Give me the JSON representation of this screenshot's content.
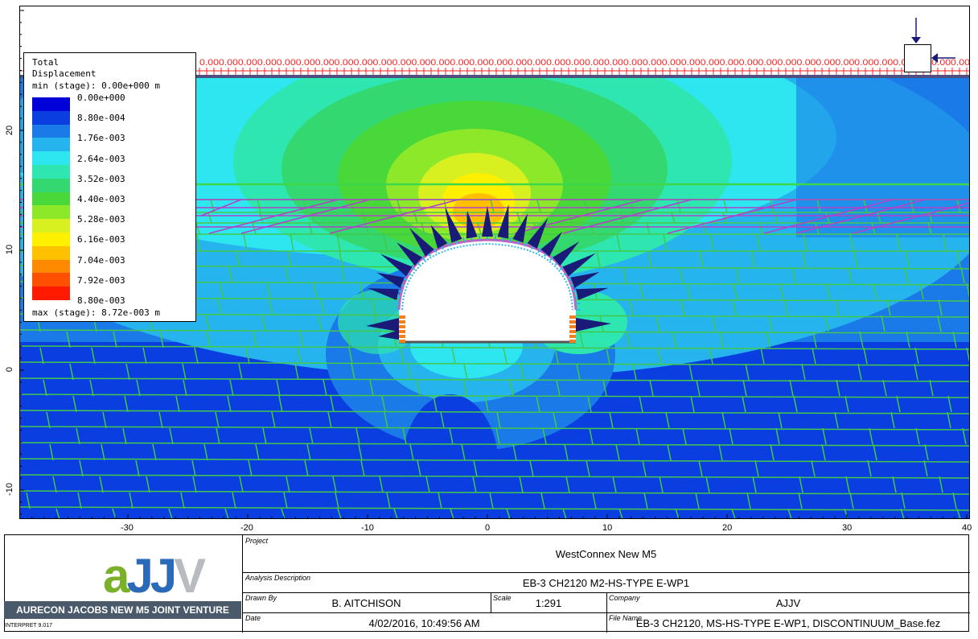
{
  "plot": {
    "x_ticks": [
      "-30",
      "-20",
      "-10",
      "0",
      "10",
      "20",
      "30",
      "40"
    ],
    "y_ticks": [
      "20",
      "10",
      "0",
      "-10"
    ],
    "load_label": "0.00"
  },
  "legend": {
    "title": "Total\nDisplacement",
    "min_text": "min (stage): 0.00e+000 m",
    "max_text": "max (stage): 8.72e-003 m",
    "values": [
      "0.00e+000",
      "8.80e-004",
      "1.76e-003",
      "2.64e-003",
      "3.52e-003",
      "4.40e-003",
      "5.28e-003",
      "6.16e-003",
      "7.04e-003",
      "7.92e-003",
      "8.80e-003"
    ],
    "colors": [
      "#0000d8",
      "#0a3ee0",
      "#1a7ae8",
      "#26b4ee",
      "#2ee6f0",
      "#2ee6b0",
      "#34d870",
      "#48d83a",
      "#8ee82a",
      "#d8f020",
      "#fff000",
      "#ffc000",
      "#ff8a00",
      "#ff5000",
      "#ff1a00"
    ]
  },
  "titleblock": {
    "logo_text": "aJJV",
    "company_band": "AURECON JACOBS NEW M5 JOINT VENTURE",
    "software": "INTERPRET 9.017",
    "project_caption": "Project",
    "project_value": "WestConnex New M5",
    "analysis_caption": "Analysis Description",
    "analysis_value": "EB-3 CH2120 M2-HS-TYPE E-WP1",
    "drawnby_caption": "Drawn By",
    "drawnby_value": "B. AITCHISON",
    "scale_caption": "Scale",
    "scale_value": "1:291",
    "company_caption": "Company",
    "company_value": "AJJV",
    "date_caption": "Date",
    "date_value": "4/02/2016, 10:49:56 AM",
    "filename_caption": "File Name",
    "filename_value": "EB-3 CH2120, MS-HS-TYPE E-WP1, DISCONTINUUM_Base.fez"
  }
}
